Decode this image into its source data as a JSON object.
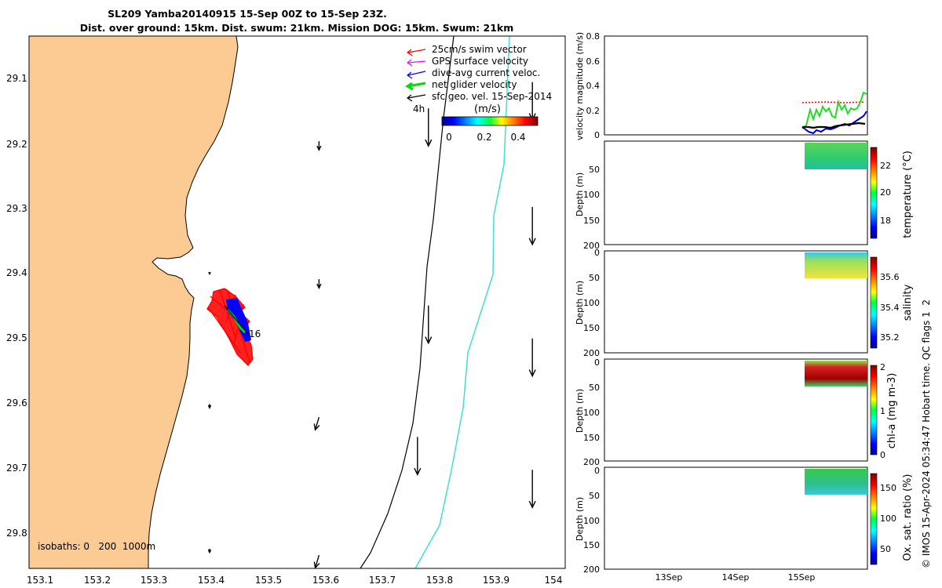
{
  "title": {
    "line1": "SL209 Yamba20140915 15-Sep 00Z to 15-Sep 23Z.",
    "line2": "Dist. over ground: 15km. Dist. swum: 21km. Mission DOG: 15km. Swum: 21km"
  },
  "map": {
    "legend": [
      {
        "label": "25cm/s swim vector",
        "color": "#ff0000"
      },
      {
        "label": "GPS surface velocity",
        "color": "#ff00ff"
      },
      {
        "label": "dive-avg current veloc.",
        "color": "#0000ff"
      },
      {
        "label": "net glider velocity",
        "color": "#00dd00"
      },
      {
        "label": "sfc geo. vel. 15-Sep-2014",
        "color": "#000000"
      }
    ],
    "time_label": "4h",
    "colorbar_unit": "(m/s)",
    "colorbar_ticks": [
      "0",
      "0.2",
      "0.4"
    ],
    "isobaths_label": "isobaths: 0   200  1000m",
    "track_label": "16",
    "x_ticks": [
      "153.1",
      "153.2",
      "153.3",
      "153.4",
      "153.5",
      "153.6",
      "153.7",
      "153.8",
      "153.9",
      "154"
    ],
    "y_ticks": [
      "29.1",
      "29.2",
      "29.3",
      "29.4",
      "29.5",
      "29.6",
      "29.7",
      "29.8"
    ],
    "colors": {
      "land": "#fbcb93",
      "isobath_200": "#000000",
      "isobath_1000": "#40e0d0"
    }
  },
  "panels": {
    "velocity": {
      "ylabel": "velocity magnitude (m/s)",
      "y_ticks": [
        "0",
        "0.2",
        "0.4",
        "0.6",
        "0.8"
      ]
    },
    "depth_ticks": [
      "0",
      "50",
      "100",
      "150",
      "200"
    ],
    "depth_label": "Depth (m)",
    "temperature": {
      "label": "temperature (°C)",
      "ticks": [
        "18",
        "20",
        "22"
      ]
    },
    "salinity": {
      "label": "salinity",
      "ticks": [
        "35.2",
        "35.4",
        "35.6"
      ]
    },
    "chla": {
      "label": "chl-a (mg m-3)",
      "ticks": [
        "0",
        "1",
        "2"
      ]
    },
    "oxygen": {
      "label": "Ox. sat. ratio (%)",
      "ticks": [
        "50",
        "100",
        "150"
      ]
    },
    "x_ticks": [
      "13Sep",
      "14Sep",
      "15Sep"
    ]
  },
  "footer_note": "© IMOS 15-Apr-2024 05:34:47 Hobart time. QC flags 1  2",
  "chart_data": [
    {
      "type": "scatter",
      "title": "SL209 Yamba20140915 15-Sep 00Z to 15-Sep 23Z.",
      "x_label": "",
      "y_label": "",
      "xlim": [
        153.07,
        154.05
      ],
      "ylim": [
        29.85,
        29.04
      ],
      "glider_track": {
        "lon": [
          153.43,
          153.44,
          153.45,
          153.46
        ],
        "lat": [
          29.44,
          29.46,
          29.48,
          29.5
        ]
      },
      "swim_vector_cluster": {
        "lon": [
          153.39,
          153.48
        ],
        "lat": [
          29.42,
          29.56
        ]
      },
      "sfc_geo_velocity_arrows": [
        {
          "lon": 153.6,
          "lat": 29.2,
          "u": 0.0,
          "v": -0.07
        },
        {
          "lon": 153.6,
          "lat": 29.41,
          "u": 0.0,
          "v": -0.07
        },
        {
          "lon": 153.4,
          "lat": 29.4,
          "u": 0.0,
          "v": -0.01
        },
        {
          "lon": 153.4,
          "lat": 29.6,
          "u": 0.0,
          "v": -0.03
        },
        {
          "lon": 153.4,
          "lat": 29.82,
          "u": 0.0,
          "v": -0.03
        },
        {
          "lon": 153.6,
          "lat": 29.62,
          "u": -0.03,
          "v": -0.1
        },
        {
          "lon": 153.6,
          "lat": 29.83,
          "u": -0.03,
          "v": -0.1
        },
        {
          "lon": 153.8,
          "lat": 29.15,
          "u": 0.0,
          "v": -0.3
        },
        {
          "lon": 153.8,
          "lat": 29.45,
          "u": 0.0,
          "v": -0.3
        },
        {
          "lon": 153.78,
          "lat": 29.65,
          "u": 0.0,
          "v": -0.3
        },
        {
          "lon": 153.99,
          "lat": 29.11,
          "u": 0.0,
          "v": -0.3
        },
        {
          "lon": 153.99,
          "lat": 29.3,
          "u": 0.0,
          "v": -0.3
        },
        {
          "lon": 153.99,
          "lat": 29.5,
          "u": 0.0,
          "v": -0.3
        },
        {
          "lon": 153.99,
          "lat": 29.7,
          "u": 0.0,
          "v": -0.3
        }
      ],
      "isobath_200": {
        "lon": [
          153.79,
          153.77,
          153.74,
          153.7,
          153.66
        ],
        "lat": [
          29.04,
          29.3,
          29.6,
          29.8,
          29.85
        ]
      },
      "isobath_1000": {
        "lon": [
          153.93,
          153.92,
          153.89,
          153.85,
          153.8,
          153.76
        ],
        "lat": [
          29.04,
          29.2,
          29.4,
          29.55,
          29.75,
          29.85
        ]
      }
    },
    {
      "type": "line",
      "title": "",
      "x_label": "",
      "y_label": "velocity magnitude (m/s)",
      "ylim": [
        0,
        0.8
      ],
      "x_categories": [
        "13Sep",
        "14Sep",
        "15Sep"
      ],
      "series": [
        {
          "name": "net glider velocity",
          "color": "#00dd00",
          "x": [
            15.0,
            15.2,
            15.4,
            15.6,
            15.8,
            16.0
          ],
          "y": [
            0.05,
            0.22,
            0.13,
            0.2,
            0.25,
            0.33
          ]
        },
        {
          "name": "dive-avg current veloc.",
          "color": "#0000ff",
          "x": [
            15.0,
            15.2,
            15.4,
            15.6,
            15.8,
            16.0
          ],
          "y": [
            0.06,
            0.01,
            0.05,
            0.08,
            0.12,
            0.18
          ]
        },
        {
          "name": "sfc geo. vel. 15-Sep-2014",
          "color": "#000000",
          "x": [
            15.0,
            15.2,
            15.4,
            15.6,
            15.8,
            16.0
          ],
          "y": [
            0.06,
            0.05,
            0.06,
            0.07,
            0.08,
            0.09
          ]
        },
        {
          "name": "25cm/s swim vector",
          "color": "#ff0000",
          "x": [
            15.05,
            16.0
          ],
          "y": [
            0.25,
            0.25
          ]
        }
      ]
    },
    {
      "type": "heatmap",
      "title": "",
      "x_label": "",
      "y_label": "Depth (m)",
      "ylim": [
        200,
        0
      ],
      "x_categories": [
        "13Sep",
        "14Sep",
        "15Sep"
      ],
      "colorbar_label": "temperature (°C)",
      "clim": [
        16.5,
        23.5
      ],
      "data_region": {
        "time": [
          15.05,
          16.0
        ],
        "depth": [
          0,
          40
        ]
      },
      "values_summary": {
        "surface": 21.5,
        "bottom": 20.5
      }
    },
    {
      "type": "heatmap",
      "title": "",
      "x_label": "",
      "y_label": "Depth (m)",
      "ylim": [
        200,
        0
      ],
      "x_categories": [
        "13Sep",
        "14Sep",
        "15Sep"
      ],
      "colorbar_label": "salinity",
      "clim": [
        35.1,
        35.7
      ],
      "data_region": {
        "time": [
          15.05,
          16.0
        ],
        "depth": [
          0,
          45
        ]
      },
      "values_summary": {
        "surface": 35.3,
        "bottom": 35.55
      }
    },
    {
      "type": "heatmap",
      "title": "",
      "x_label": "",
      "y_label": "Depth (m)",
      "ylim": [
        200,
        0
      ],
      "x_categories": [
        "13Sep",
        "14Sep",
        "15Sep"
      ],
      "colorbar_label": "chl-a (mg m-3)",
      "clim": [
        0,
        2
      ],
      "data_region": {
        "time": [
          15.05,
          16.0
        ],
        "depth": [
          0,
          40
        ]
      },
      "values_summary": {
        "surface": 1.0,
        "mid": 2.0,
        "bottom": 1.2
      }
    },
    {
      "type": "heatmap",
      "title": "",
      "x_label": "",
      "y_label": "Depth (m)",
      "ylim": [
        200,
        0
      ],
      "x_categories": [
        "13Sep",
        "14Sep",
        "15Sep"
      ],
      "colorbar_label": "Ox. sat. ratio (%)",
      "clim": [
        25,
        175
      ],
      "data_region": {
        "time": [
          15.05,
          16.0
        ],
        "depth": [
          0,
          40
        ]
      },
      "values_summary": {
        "surface": 110,
        "bottom": 95
      }
    }
  ]
}
